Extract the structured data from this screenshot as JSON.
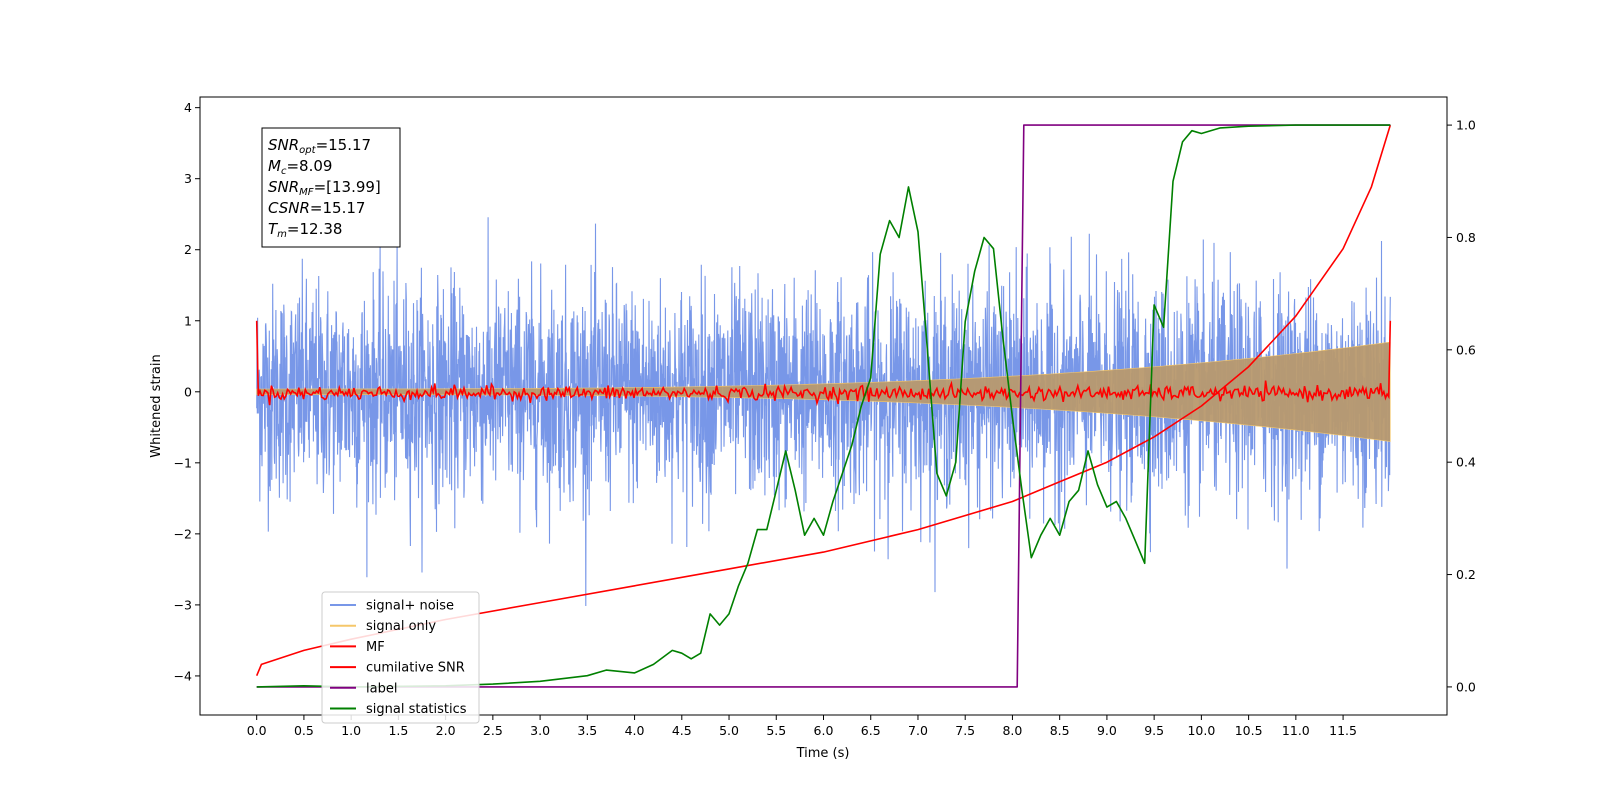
{
  "chart_data": {
    "type": "line",
    "xlabel": "Time (s)",
    "ylabel": "Whitened strain",
    "xlim": [
      -0.6,
      12.6
    ],
    "ylim_left": [
      -4.55,
      4.15
    ],
    "ylim_right": [
      -0.05,
      1.05
    ],
    "x_ticks": [
      "0.0",
      "0.5",
      "1.0",
      "1.5",
      "2.0",
      "2.5",
      "3.0",
      "3.5",
      "4.0",
      "4.5",
      "5.0",
      "5.5",
      "6.0",
      "6.5",
      "7.0",
      "7.5",
      "8.0",
      "8.5",
      "9.0",
      "9.5",
      "10.0",
      "10.5",
      "11.0",
      "11.5"
    ],
    "y_ticks_left": [
      "4",
      "3",
      "2",
      "1",
      "0",
      "−1",
      "−2",
      "−3",
      "−4"
    ],
    "y_ticks_right": [
      "1.0",
      "0.8",
      "0.6",
      "0.4",
      "0.2",
      "0.0"
    ],
    "legend_placement": "lower left",
    "annotation": {
      "snr_opt_label": "SNR",
      "snr_opt_sub": "opt",
      "snr_opt_value": "=15.17",
      "mc_label": "M",
      "mc_sub": "c",
      "mc_value": "=8.09",
      "snr_mf_label": "SNR",
      "snr_mf_sub": "MF",
      "snr_mf_value": "=[13.99]",
      "csnr_label": "CSNR",
      "csnr_value": "=15.17",
      "tm_label": "T",
      "tm_sub": "m",
      "tm_value": "=12.38"
    },
    "series": [
      {
        "name": "signal+ noise",
        "color": "#6d8ee6",
        "axis": "left",
        "description_std": 0.75,
        "x_range": [
          0.0,
          12.0
        ]
      },
      {
        "name": "signal only",
        "color": "#f5c76a",
        "axis": "left",
        "amplitude_start": 0.04,
        "amplitude_end": 0.7,
        "x_range": [
          0.0,
          12.0
        ]
      },
      {
        "name": "MF",
        "color": "#ff0000",
        "axis": "left",
        "x_range": [
          0.0,
          12.0
        ],
        "start_value": 1.0,
        "end_value": 1.0,
        "noise_std": 0.05
      },
      {
        "name": "cumilative SNR",
        "color": "#ff0000",
        "axis": "right",
        "x": [
          0.0,
          0.05,
          0.5,
          1.0,
          2.0,
          3.0,
          4.0,
          5.0,
          6.0,
          7.0,
          8.0,
          8.5,
          9.0,
          9.5,
          10.0,
          10.5,
          11.0,
          11.5,
          11.8,
          12.0
        ],
        "y": [
          0.02,
          0.04,
          0.065,
          0.085,
          0.12,
          0.15,
          0.18,
          0.21,
          0.24,
          0.28,
          0.33,
          0.365,
          0.4,
          0.445,
          0.5,
          0.57,
          0.66,
          0.78,
          0.89,
          1.0
        ]
      },
      {
        "name": "label",
        "color": "#800080",
        "axis": "right",
        "x": [
          0.0,
          8.05,
          8.12,
          12.0
        ],
        "y": [
          0.0,
          0.0,
          1.0,
          1.0
        ]
      },
      {
        "name": "signal statistics",
        "color": "#008000",
        "axis": "right",
        "x": [
          0.0,
          0.5,
          1.0,
          2.0,
          2.5,
          3.0,
          3.5,
          3.7,
          4.0,
          4.2,
          4.4,
          4.5,
          4.6,
          4.7,
          4.8,
          4.9,
          5.0,
          5.1,
          5.2,
          5.3,
          5.4,
          5.5,
          5.6,
          5.7,
          5.8,
          5.9,
          6.0,
          6.1,
          6.2,
          6.3,
          6.4,
          6.5,
          6.6,
          6.7,
          6.8,
          6.9,
          7.0,
          7.1,
          7.2,
          7.3,
          7.4,
          7.5,
          7.6,
          7.7,
          7.8,
          7.9,
          8.0,
          8.1,
          8.2,
          8.3,
          8.4,
          8.5,
          8.6,
          8.7,
          8.8,
          8.9,
          9.0,
          9.1,
          9.2,
          9.3,
          9.4,
          9.5,
          9.6,
          9.7,
          9.8,
          9.9,
          10.0,
          10.2,
          10.5,
          11.0,
          11.5,
          12.0
        ],
        "y": [
          0.0,
          0.002,
          0.0,
          0.002,
          0.005,
          0.01,
          0.02,
          0.03,
          0.025,
          0.04,
          0.065,
          0.06,
          0.05,
          0.06,
          0.13,
          0.11,
          0.13,
          0.18,
          0.22,
          0.28,
          0.28,
          0.35,
          0.42,
          0.35,
          0.27,
          0.3,
          0.27,
          0.33,
          0.38,
          0.43,
          0.5,
          0.55,
          0.77,
          0.83,
          0.8,
          0.89,
          0.81,
          0.6,
          0.38,
          0.34,
          0.4,
          0.65,
          0.74,
          0.8,
          0.78,
          0.62,
          0.48,
          0.35,
          0.23,
          0.27,
          0.3,
          0.27,
          0.33,
          0.35,
          0.42,
          0.36,
          0.32,
          0.33,
          0.3,
          0.26,
          0.22,
          0.68,
          0.64,
          0.9,
          0.97,
          0.99,
          0.985,
          0.995,
          0.998,
          1.0,
          1.0,
          1.0
        ]
      }
    ]
  }
}
